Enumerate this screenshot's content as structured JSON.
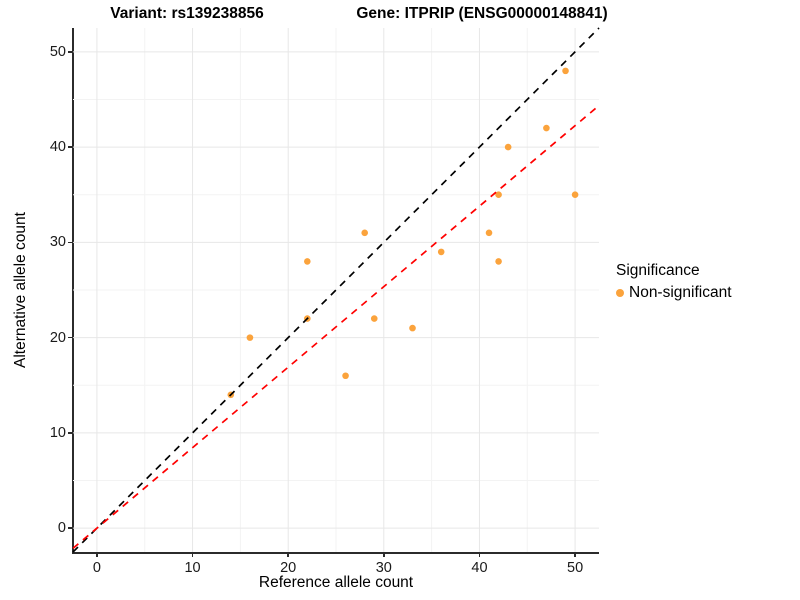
{
  "chart_data": {
    "type": "scatter",
    "title_left": "Variant: rs139238856",
    "title_right": "Gene: ITPRIP (ENSG00000148841)",
    "xlabel": "Reference allele count",
    "ylabel": "Alternative allele count",
    "xlim": [
      -2.5,
      52.5
    ],
    "ylim": [
      -2.5,
      52.5
    ],
    "xticks": [
      0,
      10,
      20,
      30,
      40,
      50
    ],
    "yticks": [
      0,
      10,
      20,
      30,
      40,
      50
    ],
    "minor_ticks": [
      5,
      15,
      25,
      35,
      45
    ],
    "grid": true,
    "series": [
      {
        "name": "Non-significant",
        "color": "#FBA33C",
        "points": [
          [
            49,
            48
          ],
          [
            47,
            42
          ],
          [
            43,
            40
          ],
          [
            50,
            35
          ],
          [
            42,
            35
          ],
          [
            41,
            31
          ],
          [
            42,
            28
          ],
          [
            36,
            29
          ],
          [
            28,
            31
          ],
          [
            29,
            22
          ],
          [
            33,
            21
          ],
          [
            22,
            28
          ],
          [
            22,
            22
          ],
          [
            16,
            20
          ],
          [
            26,
            16
          ],
          [
            14,
            14
          ]
        ]
      }
    ],
    "lines": [
      {
        "name": "identity-line",
        "slope": 1.0,
        "intercept": 0,
        "color": "#000000",
        "style": "dashed"
      },
      {
        "name": "fit-line",
        "slope": 0.845,
        "intercept": 0,
        "color": "#FF0000",
        "style": "dashed"
      }
    ],
    "legend": {
      "title": "Significance",
      "position": "right",
      "items": [
        {
          "label": "Non-significant",
          "color": "#FBA33C"
        }
      ]
    },
    "colors": {
      "grid_major": "#E7E7E7",
      "grid_minor": "#F3F3F3",
      "axis": "#2b2b2b",
      "tick_text": "#1a1a1a"
    }
  }
}
